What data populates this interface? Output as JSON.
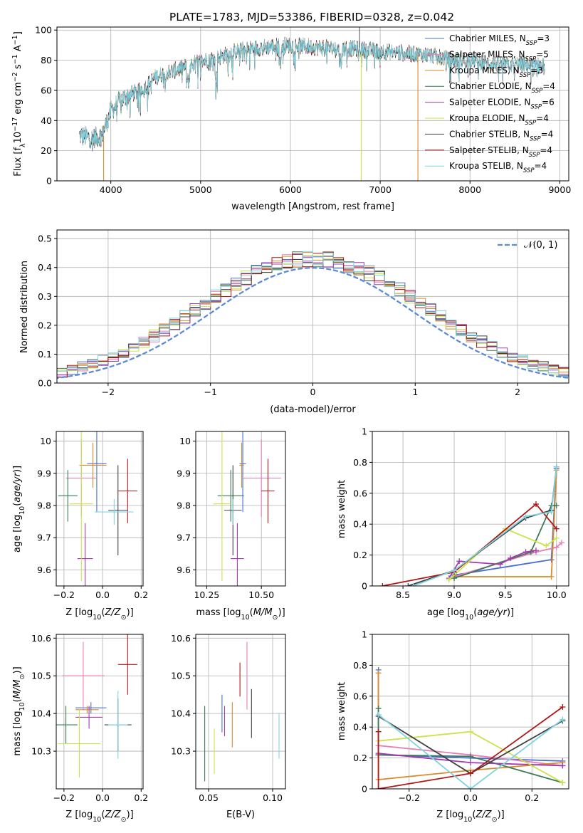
{
  "figure": {
    "title": "PLATE=1783, MJD=53386, FIBERID=0328, z=0.042"
  },
  "series_styles": [
    {
      "name": "Chabrier MILES",
      "color": "#4a6fd0",
      "nssp": "3"
    },
    {
      "name": "Salpeter MILES",
      "color": "#e87fb8",
      "nssp": "5"
    },
    {
      "name": "Kroupa MILES",
      "color": "#d98a2a",
      "nssp": "3"
    },
    {
      "name": "Chabrier ELODIE",
      "color": "#3a7a55",
      "nssp": "4"
    },
    {
      "name": "Salpeter ELODIE",
      "color": "#a33ab0",
      "nssp": "6"
    },
    {
      "name": "Kroupa ELODIE",
      "color": "#cbe34a",
      "nssp": "4"
    },
    {
      "name": "Chabrier STELIB",
      "color": "#404040",
      "nssp": "4"
    },
    {
      "name": "Salpeter STELIB",
      "color": "#b01818",
      "nssp": "4"
    },
    {
      "name": "Kroupa STELIB",
      "color": "#7fd3e0",
      "nssp": "4"
    }
  ],
  "chart_data": [
    {
      "id": "spectrum",
      "type": "line",
      "xlabel": "wavelength [Angstrom, rest frame]",
      "ylabel_parts": [
        "Flux [f",
        "λ",
        "10",
        "−17",
        " erg cm",
        "−2",
        " s",
        "−1",
        " A",
        "−1",
        "]"
      ],
      "xlim": [
        3400,
        9100
      ],
      "ylim": [
        0,
        102
      ],
      "xticks": [
        4000,
        5000,
        6000,
        7000,
        8000,
        9000
      ],
      "yticks": [
        0,
        20,
        40,
        60,
        80,
        100
      ],
      "continuum": [
        [
          3650,
          30
        ],
        [
          3800,
          28
        ],
        [
          3900,
          30
        ],
        [
          3950,
          38
        ],
        [
          4000,
          46
        ],
        [
          4100,
          53
        ],
        [
          4200,
          57
        ],
        [
          4300,
          59
        ],
        [
          4400,
          63
        ],
        [
          4500,
          69
        ],
        [
          4700,
          73
        ],
        [
          4900,
          77
        ],
        [
          5000,
          79
        ],
        [
          5200,
          82
        ],
        [
          5400,
          86
        ],
        [
          5600,
          88
        ],
        [
          5800,
          89
        ],
        [
          6000,
          90
        ],
        [
          6200,
          89
        ],
        [
          6400,
          88
        ],
        [
          6600,
          88
        ],
        [
          6800,
          87
        ],
        [
          7000,
          86
        ],
        [
          7200,
          85
        ],
        [
          7400,
          84
        ],
        [
          7600,
          83
        ],
        [
          7800,
          80
        ],
        [
          8000,
          80
        ],
        [
          8200,
          78
        ],
        [
          8400,
          77
        ],
        [
          8600,
          77
        ],
        [
          8800,
          76
        ]
      ],
      "dropouts": [
        {
          "series": "Kroupa MILES",
          "x": 3920,
          "ytop": 30
        },
        {
          "series": "Kroupa ELODIE",
          "x": 6790,
          "ytop": 85
        },
        {
          "series": "Kroupa MILES",
          "x": 7420,
          "ytop": 84
        }
      ],
      "spike_x": 6770
    },
    {
      "id": "residuals",
      "type": "histogram",
      "xlabel": "(data-model)/error",
      "ylabel": "Normed distribution",
      "xlim": [
        -2.5,
        2.5
      ],
      "ylim": [
        0,
        0.53
      ],
      "xticks": [
        -2,
        -1,
        0,
        1,
        2
      ],
      "xtick_labels": [
        "−2",
        "−1",
        "0",
        "1",
        "2"
      ],
      "yticks": [
        0.0,
        0.1,
        0.2,
        0.3,
        0.4,
        0.5
      ],
      "ytick_labels": [
        "0.0",
        "0.1",
        "0.2",
        "0.3",
        "0.4",
        "0.5"
      ],
      "bin_width": 0.1,
      "reference_curve": {
        "label": "𝒩(0, 1)",
        "mean": 0,
        "sigma": 1,
        "color": "#5b8bd6"
      }
    },
    {
      "id": "age_vs_Z",
      "type": "errorbar",
      "xlabel": "Z [log10(Z/Z⊙)]",
      "ylabel": "age  [log10(age/yr)]",
      "xlim": [
        -0.24,
        0.21
      ],
      "ylim": [
        9.55,
        10.03
      ],
      "xticks": [
        -0.2,
        0.0,
        0.2
      ],
      "xtick_labels": [
        "−0.2",
        "0.0",
        "0.2"
      ],
      "yticks": [
        9.6,
        9.7,
        9.8,
        9.9,
        10.0
      ],
      "points": [
        {
          "series": "Chabrier MILES",
          "x": -0.03,
          "xerr": 0.05,
          "y": 9.93,
          "yerr": 0.15
        },
        {
          "series": "Salpeter MILES",
          "x": -0.11,
          "xerr": 0.08,
          "y": 9.885,
          "yerr": 0.12
        },
        {
          "series": "Kroupa MILES",
          "x": -0.05,
          "xerr": 0.07,
          "y": 9.925,
          "yerr": 0.07
        },
        {
          "series": "Chabrier ELODIE",
          "x": -0.18,
          "xerr": 0.05,
          "y": 9.83,
          "yerr": 0.08
        },
        {
          "series": "Salpeter ELODIE",
          "x": -0.09,
          "xerr": 0.04,
          "y": 9.635,
          "yerr": 0.11
        },
        {
          "series": "Kroupa ELODIE",
          "x": -0.11,
          "xerr": 0.06,
          "y": 9.805,
          "yerr": 0.24
        },
        {
          "series": "Chabrier STELIB",
          "x": 0.08,
          "xerr": 0.05,
          "y": 9.785,
          "yerr": 0.14
        },
        {
          "series": "Salpeter STELIB",
          "x": 0.13,
          "xerr": 0.05,
          "y": 9.845,
          "yerr": 0.1
        },
        {
          "series": "Kroupa STELIB",
          "x": 0.06,
          "xerr": 0.1,
          "y": 9.78,
          "yerr": 0.04
        }
      ]
    },
    {
      "id": "age_vs_mass",
      "type": "errorbar",
      "xlabel": "mass [log10(M/M⊙)]",
      "ylabel": "",
      "xlim": [
        10.2,
        10.61
      ],
      "ylim": [
        9.55,
        10.03
      ],
      "xticks": [
        10.25,
        10.5
      ],
      "xtick_labels": [
        "10.25",
        "10.50"
      ],
      "yticks": [
        9.6,
        9.7,
        9.8,
        9.9,
        10.0
      ],
      "points": [
        {
          "series": "Chabrier MILES",
          "x": 10.415,
          "xerr": 0.015,
          "y": 9.93,
          "yerr": 0.15
        },
        {
          "series": "Salpeter MILES",
          "x": 10.5,
          "xerr": 0.09,
          "y": 9.885,
          "yerr": 0.12
        },
        {
          "series": "Kroupa MILES",
          "x": 10.41,
          "xerr": 0.01,
          "y": 9.925,
          "yerr": 0.07
        },
        {
          "series": "Chabrier ELODIE",
          "x": 10.36,
          "xerr": 0.06,
          "y": 9.83,
          "yerr": 0.08
        },
        {
          "series": "Salpeter ELODIE",
          "x": 10.39,
          "xerr": 0.03,
          "y": 9.635,
          "yerr": 0.11
        },
        {
          "series": "Kroupa ELODIE",
          "x": 10.32,
          "xerr": 0.04,
          "y": 9.805,
          "yerr": 0.24
        },
        {
          "series": "Chabrier STELIB",
          "x": 10.37,
          "xerr": 0.04,
          "y": 9.785,
          "yerr": 0.14
        },
        {
          "series": "Salpeter STELIB",
          "x": 10.53,
          "xerr": 0.03,
          "y": 9.845,
          "yerr": 0.1
        },
        {
          "series": "Kroupa STELIB",
          "x": 10.37,
          "xerr": 0.005,
          "y": 9.78,
          "yerr": 0.04
        }
      ]
    },
    {
      "id": "mass_weight_vs_age",
      "type": "line",
      "xlabel": "age  [log10(age/yr)]",
      "ylabel": "mass weight",
      "xlim": [
        8.2,
        10.12
      ],
      "ylim": [
        0,
        1.0
      ],
      "xticks": [
        8.5,
        9.0,
        9.5,
        10.0
      ],
      "xtick_labels": [
        "8.5",
        "9.0",
        "9.5",
        "10.0"
      ],
      "yticks": [
        0.0,
        0.2,
        0.4,
        0.6,
        0.8,
        1.0
      ],
      "series": [
        {
          "name": "Chabrier MILES",
          "x": [
            9.0,
            9.95,
            10.0
          ],
          "y": [
            0.07,
            0.17,
            0.76
          ]
        },
        {
          "name": "Salpeter MILES",
          "x": [
            9.0,
            9.8,
            10.0,
            10.05
          ],
          "y": [
            0.06,
            0.22,
            0.25,
            0.28
          ]
        },
        {
          "name": "Kroupa MILES",
          "x": [
            9.0,
            9.95,
            10.0
          ],
          "y": [
            0.06,
            0.06,
            0.75
          ]
        },
        {
          "name": "Chabrier ELODIE",
          "x": [
            9.0,
            9.75,
            9.95,
            10.0
          ],
          "y": [
            0.05,
            0.22,
            0.52,
            0.52
          ]
        },
        {
          "name": "Salpeter ELODIE",
          "x": [
            8.95,
            9.05,
            9.45,
            9.55,
            9.7,
            9.8
          ],
          "y": [
            0.05,
            0.16,
            0.14,
            0.18,
            0.22,
            0.23
          ]
        },
        {
          "name": "Kroupa ELODIE",
          "x": [
            8.95,
            9.5,
            9.9,
            10.0
          ],
          "y": [
            0.04,
            0.37,
            0.26,
            0.31
          ]
        },
        {
          "name": "Chabrier STELIB",
          "x": [
            8.55,
            9.0,
            9.7,
            9.95,
            10.0
          ],
          "y": [
            0.0,
            0.1,
            0.44,
            0.49,
            0.77
          ]
        },
        {
          "name": "Salpeter STELIB",
          "x": [
            8.3,
            9.0,
            9.8,
            10.0
          ],
          "y": [
            0.0,
            0.09,
            0.53,
            0.37
          ]
        },
        {
          "name": "Kroupa STELIB",
          "x": [
            8.6,
            9.0,
            9.7,
            9.95,
            10.0
          ],
          "y": [
            0.0,
            0.1,
            0.45,
            0.48,
            0.77
          ]
        }
      ]
    },
    {
      "id": "mass_vs_Z",
      "type": "errorbar",
      "xlabel": "Z [log10(Z/Z⊙)]",
      "ylabel": "mass [log10(M/M⊙)]",
      "xlim": [
        -0.24,
        0.21
      ],
      "ylim": [
        10.2,
        10.61
      ],
      "xticks": [
        -0.2,
        0.0,
        0.2
      ],
      "xtick_labels": [
        "−0.2",
        "0.0",
        "0.2"
      ],
      "yticks": [
        10.3,
        10.4,
        10.5,
        10.6
      ],
      "points": [
        {
          "series": "Chabrier MILES",
          "x": -0.06,
          "xerr": 0.08,
          "y": 10.415,
          "yerr": 0.015
        },
        {
          "series": "Salpeter MILES",
          "x": -0.1,
          "xerr": 0.11,
          "y": 10.5,
          "yerr": 0.09
        },
        {
          "series": "Kroupa MILES",
          "x": -0.08,
          "xerr": 0.06,
          "y": 10.41,
          "yerr": 0.01
        },
        {
          "series": "Chabrier ELODIE",
          "x": -0.19,
          "xerr": 0.06,
          "y": 10.37,
          "yerr": 0.05
        },
        {
          "series": "Salpeter ELODIE",
          "x": -0.07,
          "xerr": 0.07,
          "y": 10.39,
          "yerr": 0.03
        },
        {
          "series": "Kroupa ELODIE",
          "x": -0.12,
          "xerr": 0.11,
          "y": 10.32,
          "yerr": 0.09
        },
        {
          "series": "Chabrier STELIB",
          "x": 0.08,
          "xerr": 0.07,
          "y": 10.37,
          "yerr": 0.07
        },
        {
          "series": "Salpeter STELIB",
          "x": 0.13,
          "xerr": 0.05,
          "y": 10.53,
          "yerr": 0.08
        },
        {
          "series": "Kroupa STELIB",
          "x": 0.08,
          "xerr": 0.05,
          "y": 10.37,
          "yerr": 0.09
        }
      ]
    },
    {
      "id": "mass_vs_EBV",
      "type": "errorbar",
      "xlabel": "E(B-V)",
      "ylabel": "",
      "xlim": [
        0.04,
        0.11
      ],
      "ylim": [
        10.2,
        10.61
      ],
      "xticks": [
        0.05,
        0.1
      ],
      "xtick_labels": [
        "0.05",
        "0.10"
      ],
      "yticks": [
        10.3,
        10.4,
        10.5,
        10.6
      ],
      "points": [
        {
          "series": "Chabrier MILES",
          "x": 0.0605,
          "y": 10.4,
          "yerr": 0.05
        },
        {
          "series": "Salpeter MILES",
          "x": 0.08,
          "y": 10.5,
          "yerr": 0.09
        },
        {
          "series": "Kroupa MILES",
          "x": 0.0685,
          "y": 10.37,
          "yerr": 0.06
        },
        {
          "series": "Chabrier ELODIE",
          "x": 0.047,
          "y": 10.32,
          "yerr": 0.1
        },
        {
          "series": "Salpeter ELODIE",
          "x": 0.0625,
          "y": 10.38,
          "yerr": 0.04
        },
        {
          "series": "Kroupa ELODIE",
          "x": 0.0545,
          "y": 10.3,
          "yerr": 0.06
        },
        {
          "series": "Chabrier STELIB",
          "x": 0.0835,
          "y": 10.4,
          "yerr": 0.065
        },
        {
          "series": "Salpeter STELIB",
          "x": 0.0745,
          "y": 10.49,
          "yerr": 0.045
        },
        {
          "series": "Kroupa STELIB",
          "x": 0.105,
          "y": 10.34,
          "yerr": 0.06
        }
      ]
    },
    {
      "id": "mass_weight_vs_Z",
      "type": "line",
      "xlabel": "Z [log10(Z/Z⊙)]",
      "ylabel": "mass weight",
      "xlim": [
        -0.32,
        0.32
      ],
      "ylim": [
        0,
        1.0
      ],
      "xticks": [
        -0.2,
        0.0,
        0.2
      ],
      "xtick_labels": [
        "−0.2",
        "0.0",
        "0.2"
      ],
      "yticks": [
        0.0,
        0.2,
        0.4,
        0.6,
        0.8,
        1.0
      ],
      "series": [
        {
          "name": "Chabrier MILES",
          "x": [
            -0.3,
            -0.3,
            0.0,
            0.3
          ],
          "y": [
            0.77,
            0.22,
            0.2,
            0.18
          ]
        },
        {
          "name": "Salpeter MILES",
          "x": [
            -0.3,
            0.0,
            0.3
          ],
          "y": [
            0.28,
            0.22,
            0.15
          ]
        },
        {
          "name": "Kroupa MILES",
          "x": [
            -0.3,
            -0.3,
            0.0,
            0.3
          ],
          "y": [
            0.75,
            0.06,
            0.12,
            0.17
          ]
        },
        {
          "name": "Chabrier ELODIE",
          "x": [
            -0.3,
            -0.3,
            0.0,
            0.3
          ],
          "y": [
            0.52,
            0.22,
            0.21,
            0.04
          ]
        },
        {
          "name": "Salpeter ELODIE",
          "x": [
            -0.3,
            0.0,
            0.3
          ],
          "y": [
            0.23,
            0.17,
            0.15
          ]
        },
        {
          "name": "Kroupa ELODIE",
          "x": [
            -0.3,
            0.0,
            0.3
          ],
          "y": [
            0.31,
            0.37,
            0.04
          ]
        },
        {
          "name": "Chabrier STELIB",
          "x": [
            -0.3,
            0.0,
            0.3
          ],
          "y": [
            0.47,
            0.1,
            0.44
          ]
        },
        {
          "name": "Salpeter STELIB",
          "x": [
            -0.3,
            -0.3,
            0.0,
            0.3
          ],
          "y": [
            0.37,
            0.0,
            0.1,
            0.53
          ]
        },
        {
          "name": "Kroupa STELIB",
          "x": [
            -0.3,
            0.0,
            0.3
          ],
          "y": [
            0.48,
            0.0,
            0.45
          ]
        }
      ]
    }
  ]
}
